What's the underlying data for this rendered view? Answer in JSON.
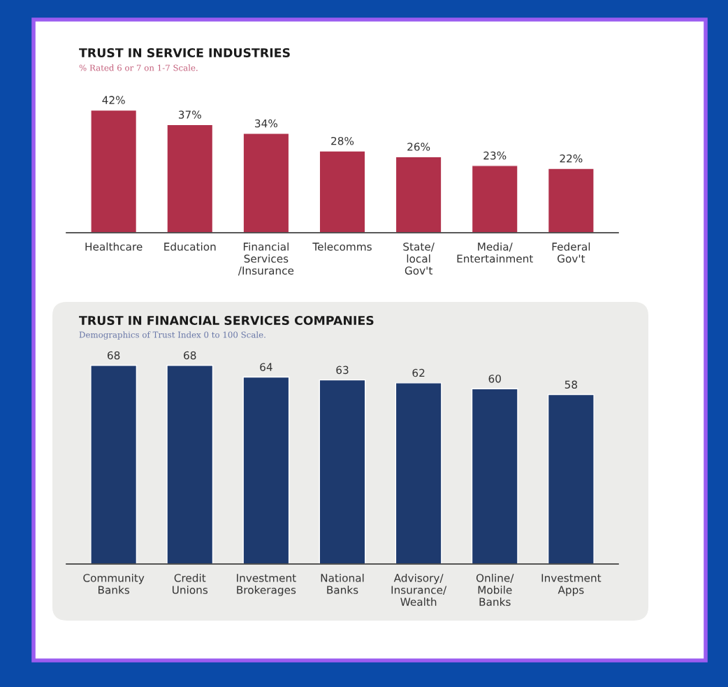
{
  "chart_data": [
    {
      "type": "bar",
      "title": "TRUST IN SERVICE INDUSTRIES",
      "subtitle": "% Rated 6 or 7 on 1-7 Scale.",
      "tick_labels": "x",
      "categories": [
        "Healthcare",
        "Education",
        "Financial\nServices\n/Insurance",
        "Telecomms",
        "State/\nlocal\nGov't",
        "Media/\nEntertainment",
        "Federal\nGov't"
      ],
      "values": [
        42,
        37,
        34,
        28,
        26,
        23,
        22
      ],
      "color": "#b0304a",
      "value_labels": [
        "42%",
        "37%",
        "34%",
        "28%",
        "26%",
        "23%",
        "22%"
      ]
    },
    {
      "type": "bar",
      "title": "TRUST IN FINANCIAL SERVICES COMPANIES",
      "subtitle": "Demographics of Trust Index 0 to 100 Scale.",
      "tick_labels": "x",
      "categories": [
        "Community\nBanks",
        "Credit\nUnions",
        "Investment\nBrokerages",
        "National\nBanks",
        "Advisory/\nInsurance/\nWealth",
        "Online/\nMobile\nBanks",
        "Investment\nApps"
      ],
      "values": [
        68,
        68,
        64,
        63,
        62,
        60,
        58
      ],
      "color": "#1e3a6e",
      "data_labels": true
    }
  ]
}
